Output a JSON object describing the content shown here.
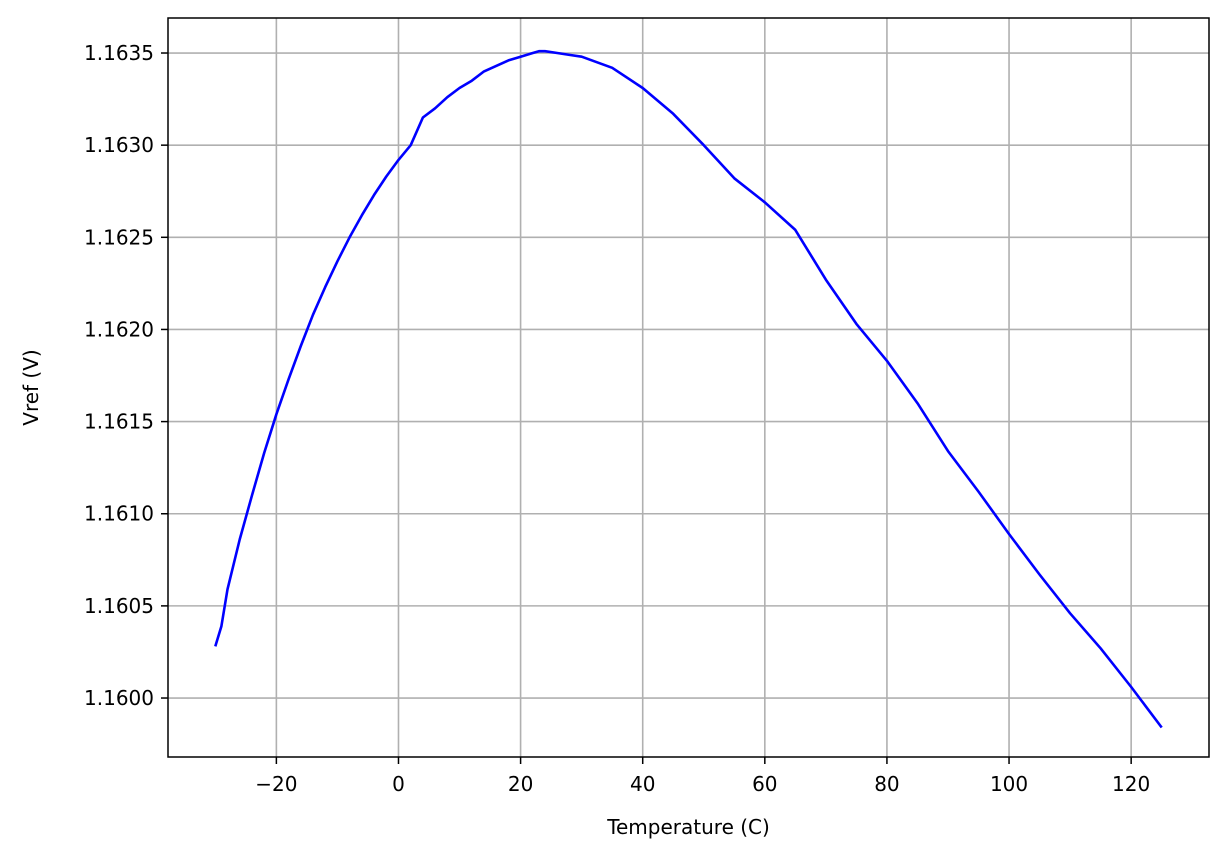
{
  "chart_data": {
    "type": "line",
    "title": "",
    "xlabel": "Temperature (C)",
    "ylabel": "Vref (V)",
    "xlim": [
      -37.75,
      132.75
    ],
    "ylim": [
      1.15968,
      1.16369
    ],
    "grid": true,
    "x_ticks": [
      -20,
      0,
      20,
      40,
      60,
      80,
      100,
      120
    ],
    "x_tick_labels": [
      "−20",
      "0",
      "20",
      "40",
      "60",
      "80",
      "100",
      "120"
    ],
    "y_ticks": [
      1.16,
      1.1605,
      1.161,
      1.1615,
      1.162,
      1.1625,
      1.163,
      1.1635
    ],
    "y_tick_labels": [
      "1.1600",
      "1.1605",
      "1.1610",
      "1.1615",
      "1.1620",
      "1.1625",
      "1.1630",
      "1.1635"
    ],
    "series": [
      {
        "color": "#0000ff",
        "x": [
          -30,
          -29,
          -28,
          -26,
          -24,
          -22,
          -20,
          -18,
          -16,
          -14,
          -12,
          -10,
          -8,
          -6,
          -4,
          -2,
          0,
          2,
          4,
          6,
          8,
          10,
          12,
          14,
          16,
          18,
          20,
          22,
          23,
          24,
          26,
          28,
          30,
          35,
          40,
          45,
          50,
          55,
          60,
          65,
          70,
          75,
          80,
          85,
          90,
          95,
          100,
          105,
          110,
          115,
          120,
          125
        ],
        "values": [
          1.16028,
          1.16039,
          1.16059,
          1.16086,
          1.1611,
          1.16133,
          1.16154,
          1.16173,
          1.16191,
          1.16208,
          1.16223,
          1.16237,
          1.1625,
          1.16262,
          1.16273,
          1.16283,
          1.16292,
          1.163,
          1.16315,
          1.1632,
          1.16326,
          1.16331,
          1.16335,
          1.1634,
          1.16343,
          1.16346,
          1.16348,
          1.1635,
          1.16351,
          1.16351,
          1.1635,
          1.16349,
          1.16348,
          1.16342,
          1.16331,
          1.16317,
          1.163,
          1.16282,
          1.16269,
          1.16254,
          1.16227,
          1.16203,
          1.16183,
          1.1616,
          1.16134,
          1.16112,
          1.16089,
          1.16067,
          1.16046,
          1.16027,
          1.16006,
          1.15984
        ]
      }
    ]
  }
}
